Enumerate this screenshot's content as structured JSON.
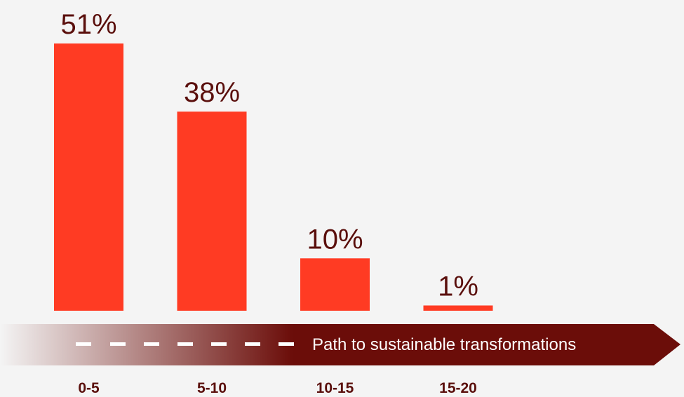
{
  "chart_data": {
    "type": "bar",
    "categories": [
      "0-5",
      "5-10",
      "10-15",
      "15-20"
    ],
    "values": [
      51,
      38,
      10,
      1
    ],
    "value_labels": [
      "51%",
      "38%",
      "10%",
      "1%"
    ],
    "title": "",
    "xlabel": "",
    "ylabel": "",
    "ylim": [
      0,
      51
    ],
    "grid": false,
    "legend": "none"
  },
  "arrow": {
    "label": "Path to sustainable transformations"
  },
  "colors": {
    "background": "#f4f4f4",
    "bar": "#ff3b23",
    "arrow_dark": "#6b0d09",
    "label_text": "#5a0f0c",
    "dash": "#ffffff"
  }
}
